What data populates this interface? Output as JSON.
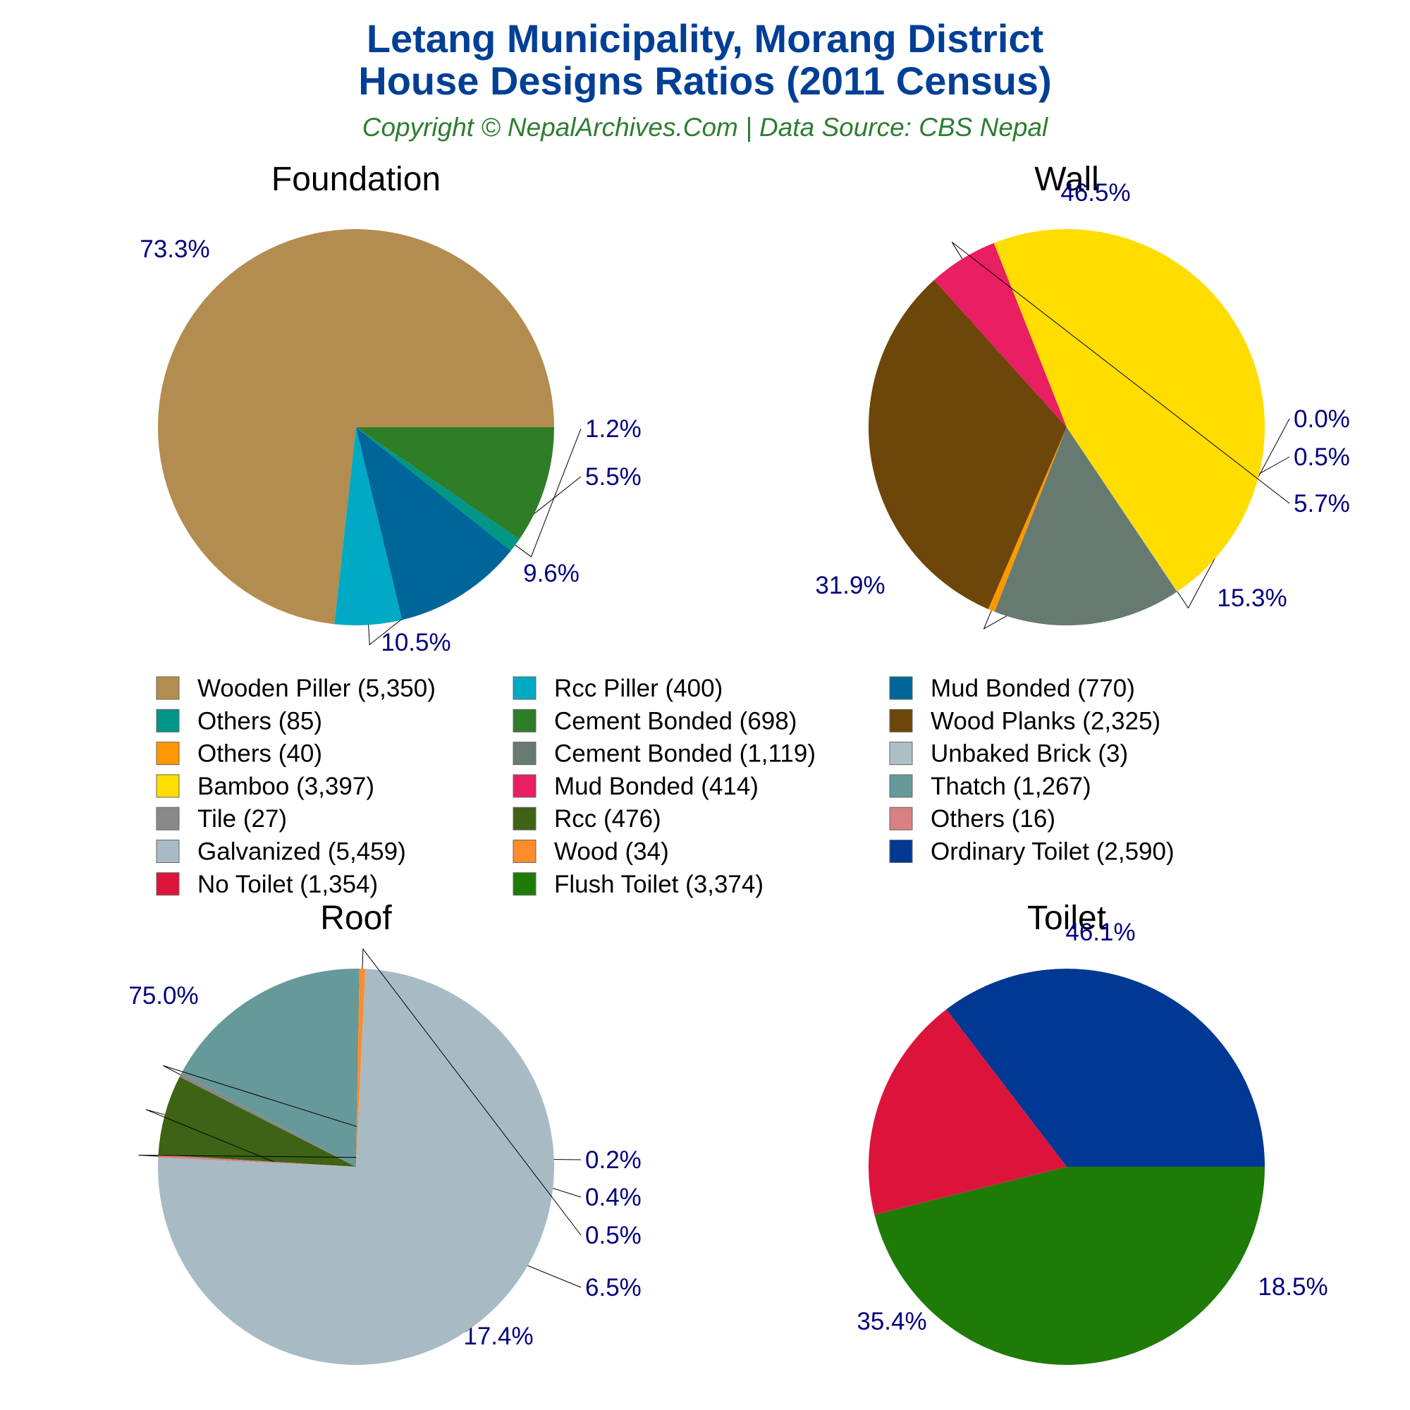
{
  "header": {
    "title_line1": "Letang Municipality, Morang District",
    "title_line2": "House Designs Ratios (2011 Census)",
    "subtitle": "Copyright © NepalArchives.Com | Data Source: CBS Nepal"
  },
  "colors": {
    "title": "#003f96",
    "subtitle": "#2e7d32",
    "label": "#000080",
    "chart_title": "#000000"
  },
  "chart_data": [
    {
      "type": "pie",
      "title": "Foundation",
      "slices": [
        {
          "label": "Wooden Piller (5,350)",
          "value": 5350,
          "pct": "73.3%",
          "color": "#b38d50"
        },
        {
          "label": "Rcc Piller (400)",
          "value": 400,
          "pct": "5.5%",
          "color": "#00aac4"
        },
        {
          "label": "Mud Bonded (770)",
          "value": 770,
          "pct": "10.5%",
          "color": "#006699"
        },
        {
          "label": "Others (85)",
          "value": 85,
          "pct": "1.2%",
          "color": "#009688"
        },
        {
          "label": "Cement Bonded (698)",
          "value": 698,
          "pct": "9.6%",
          "color": "#2e7d27"
        }
      ]
    },
    {
      "type": "pie",
      "title": "Wall",
      "slices": [
        {
          "label": "Wood Planks (2,325)",
          "value": 2325,
          "pct": "31.9%",
          "color": "#6d4709"
        },
        {
          "label": "Others (40)",
          "value": 40,
          "pct": "0.5%",
          "color": "#ff9800"
        },
        {
          "label": "Cement Bonded (1,119)",
          "value": 1119,
          "pct": "15.3%",
          "color": "#667a70"
        },
        {
          "label": "Unbaked Brick (3)",
          "value": 3,
          "pct": "0.0%",
          "color": "#aebfc6"
        },
        {
          "label": "Bamboo (3,397)",
          "value": 3397,
          "pct": "46.5%",
          "color": "#ffdd00"
        },
        {
          "label": "Mud Bonded (414)",
          "value": 414,
          "pct": "5.7%",
          "color": "#e91e63"
        }
      ]
    },
    {
      "type": "pie",
      "title": "Roof",
      "slices": [
        {
          "label": "Thatch (1,267)",
          "value": 1267,
          "pct": "17.4%",
          "color": "#669999"
        },
        {
          "label": "Tile (27)",
          "value": 27,
          "pct": "0.4%",
          "color": "#8a8888"
        },
        {
          "label": "Rcc (476)",
          "value": 476,
          "pct": "6.5%",
          "color": "#3e6314"
        },
        {
          "label": "Others (16)",
          "value": 16,
          "pct": "0.2%",
          "color": "#d98080"
        },
        {
          "label": "Galvanized (5,459)",
          "value": 5459,
          "pct": "75.0%",
          "color": "#a8bbc4"
        },
        {
          "label": "Wood (34)",
          "value": 34,
          "pct": "0.5%",
          "color": "#ff8c2a"
        }
      ]
    },
    {
      "type": "pie",
      "title": "Toilet",
      "slices": [
        {
          "label": "Ordinary Toilet (2,590)",
          "value": 2590,
          "pct": "35.4%",
          "color": "#003893"
        },
        {
          "label": "No Toilet (1,354)",
          "value": 1354,
          "pct": "18.5%",
          "color": "#dc143c"
        },
        {
          "label": "Flush Toilet (3,374)",
          "value": 3374,
          "pct": "46.1%",
          "color": "#1e7b08"
        }
      ]
    }
  ]
}
